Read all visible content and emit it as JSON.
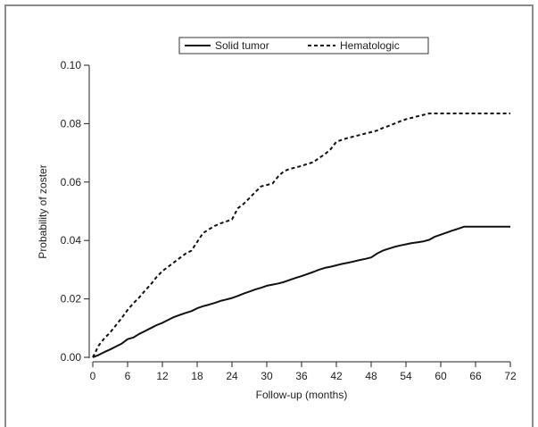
{
  "chart_data": {
    "type": "line",
    "title": "",
    "xlabel": "Follow-up (months)",
    "ylabel": "Probability of zoster",
    "xlim": [
      0,
      72
    ],
    "ylim": [
      0,
      0.1
    ],
    "xticks": [
      0,
      6,
      12,
      18,
      24,
      30,
      36,
      42,
      48,
      54,
      60,
      66,
      72
    ],
    "yticks": [
      0.0,
      0.02,
      0.04,
      0.06,
      0.08,
      0.1
    ],
    "ytick_labels": [
      "0.00",
      "0.02",
      "0.04",
      "0.06",
      "0.08",
      "0.10"
    ],
    "grid": false,
    "legend": "top-center",
    "series": [
      {
        "name": "Solid tumor",
        "style": "solid",
        "color": "#111111",
        "x": [
          0,
          1,
          2,
          3,
          4,
          5,
          6,
          7,
          8,
          9,
          10,
          11,
          12,
          13,
          14,
          15,
          16,
          17,
          18,
          19,
          20,
          21,
          22,
          23,
          24,
          25,
          26,
          27,
          28,
          29,
          30,
          31,
          32,
          33,
          34,
          35,
          36,
          37,
          38,
          39,
          40,
          41,
          42,
          43,
          44,
          45,
          46,
          47,
          48,
          49,
          50,
          51,
          52,
          53,
          54,
          55,
          56,
          57,
          58,
          59,
          60,
          61,
          62,
          63,
          64,
          66,
          68,
          70,
          72
        ],
        "y": [
          0.0,
          0.0008,
          0.0018,
          0.0027,
          0.0037,
          0.0047,
          0.0062,
          0.0068,
          0.008,
          0.009,
          0.01,
          0.011,
          0.0118,
          0.0128,
          0.0138,
          0.0145,
          0.0152,
          0.0158,
          0.0168,
          0.0175,
          0.018,
          0.0186,
          0.0193,
          0.0198,
          0.0203,
          0.021,
          0.0218,
          0.0225,
          0.0232,
          0.0238,
          0.0245,
          0.0249,
          0.0253,
          0.0258,
          0.0265,
          0.0272,
          0.0278,
          0.0285,
          0.0292,
          0.03,
          0.0306,
          0.031,
          0.0315,
          0.032,
          0.0324,
          0.0328,
          0.0333,
          0.0337,
          0.0342,
          0.0355,
          0.0365,
          0.0372,
          0.0378,
          0.0383,
          0.0387,
          0.0391,
          0.0394,
          0.0397,
          0.0402,
          0.0413,
          0.042,
          0.0427,
          0.0434,
          0.044,
          0.0447,
          0.0447,
          0.0447,
          0.0447,
          0.0447
        ]
      },
      {
        "name": "Hematologic",
        "style": "dashed",
        "color": "#111111",
        "x": [
          0,
          0.5,
          1,
          2,
          3,
          4,
          5,
          6,
          7,
          8,
          9,
          10,
          11,
          12,
          13,
          14,
          15,
          16,
          17,
          18,
          19,
          20,
          21,
          22,
          23,
          24,
          25,
          26,
          27,
          28,
          29,
          30,
          31,
          32,
          33,
          34,
          35,
          36,
          37,
          38,
          39,
          40,
          41,
          42,
          43,
          44,
          45,
          46,
          47,
          48,
          49,
          50,
          51,
          52,
          53,
          54,
          55,
          56,
          57,
          58,
          60,
          62,
          64,
          66,
          68,
          70,
          72
        ],
        "y": [
          0.0,
          0.002,
          0.004,
          0.0065,
          0.0085,
          0.011,
          0.0135,
          0.0162,
          0.0185,
          0.0205,
          0.0228,
          0.025,
          0.0275,
          0.0295,
          0.031,
          0.0325,
          0.034,
          0.0355,
          0.0365,
          0.0395,
          0.0425,
          0.0438,
          0.045,
          0.0458,
          0.0465,
          0.0472,
          0.051,
          0.0525,
          0.0545,
          0.0565,
          0.0585,
          0.059,
          0.0595,
          0.062,
          0.0638,
          0.0645,
          0.065,
          0.0655,
          0.0662,
          0.0668,
          0.0682,
          0.0695,
          0.0712,
          0.0738,
          0.0745,
          0.0751,
          0.0756,
          0.0761,
          0.0766,
          0.0771,
          0.0776,
          0.0785,
          0.0792,
          0.08,
          0.0808,
          0.0815,
          0.082,
          0.0825,
          0.083,
          0.0835,
          0.0835,
          0.0835,
          0.0835,
          0.0835,
          0.0835,
          0.0835,
          0.0835
        ]
      }
    ]
  }
}
